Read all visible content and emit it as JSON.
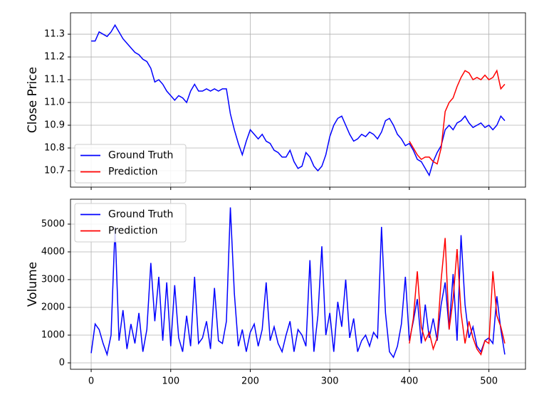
{
  "chart_data": [
    {
      "type": "line",
      "y_label": "Close Price",
      "legend": "lower left",
      "grid": true,
      "xlim": [
        -26,
        546
      ],
      "xticks": [
        0,
        100,
        200,
        300,
        400,
        500
      ],
      "ylim": [
        10.628,
        11.394
      ],
      "yticks": [
        10.7,
        10.8,
        10.9,
        {
          "value": 11,
          "label": "11.0"
        },
        11.1,
        11.2,
        11.3
      ],
      "series": [
        {
          "name": "Ground Truth",
          "color": "#0000ff",
          "x": [
            0,
            5,
            10,
            15,
            20,
            25,
            30,
            35,
            40,
            45,
            50,
            55,
            60,
            65,
            70,
            75,
            80,
            85,
            90,
            95,
            100,
            105,
            110,
            115,
            120,
            125,
            130,
            135,
            140,
            145,
            150,
            155,
            160,
            165,
            170,
            175,
            180,
            185,
            190,
            195,
            200,
            205,
            210,
            215,
            220,
            225,
            230,
            235,
            240,
            245,
            250,
            255,
            260,
            265,
            270,
            275,
            280,
            285,
            290,
            295,
            300,
            305,
            310,
            315,
            320,
            325,
            330,
            335,
            340,
            345,
            350,
            355,
            360,
            365,
            370,
            375,
            380,
            385,
            390,
            395,
            400,
            405,
            410,
            415,
            420,
            425,
            430,
            435,
            440,
            445,
            450,
            455,
            460,
            465,
            470,
            475,
            480,
            485,
            490,
            495,
            500,
            505,
            510,
            515,
            520
          ],
          "values": [
            11.27,
            11.27,
            11.31,
            11.3,
            11.29,
            11.31,
            11.34,
            11.31,
            11.28,
            11.26,
            11.24,
            11.22,
            11.21,
            11.19,
            11.18,
            11.15,
            11.09,
            11.1,
            11.08,
            11.05,
            11.03,
            11.01,
            11.03,
            11.02,
            11.0,
            11.05,
            11.08,
            11.05,
            11.05,
            11.06,
            11.05,
            11.06,
            11.05,
            11.06,
            11.06,
            10.95,
            10.88,
            10.82,
            10.77,
            10.83,
            10.88,
            10.86,
            10.84,
            10.86,
            10.83,
            10.82,
            10.79,
            10.78,
            10.76,
            10.76,
            10.79,
            10.74,
            10.71,
            10.72,
            10.78,
            10.76,
            10.72,
            10.7,
            10.72,
            10.77,
            10.85,
            10.9,
            10.93,
            10.94,
            10.9,
            10.86,
            10.83,
            10.84,
            10.86,
            10.85,
            10.87,
            10.86,
            10.84,
            10.87,
            10.92,
            10.93,
            10.9,
            10.86,
            10.84,
            10.81,
            10.82,
            10.79,
            10.75,
            10.74,
            10.71,
            10.68,
            10.74,
            10.78,
            10.81,
            10.88,
            10.9,
            10.88,
            10.91,
            10.92,
            10.94,
            10.91,
            10.89,
            10.9,
            10.91,
            10.89,
            10.9,
            10.88,
            10.9,
            10.94,
            10.92
          ]
        },
        {
          "name": "Prediction",
          "color": "#ff0000",
          "x": [
            400,
            405,
            410,
            415,
            420,
            425,
            430,
            435,
            440,
            445,
            450,
            455,
            460,
            465,
            470,
            475,
            480,
            485,
            490,
            495,
            500,
            505,
            510,
            515,
            520
          ],
          "values": [
            10.83,
            10.8,
            10.77,
            10.75,
            10.76,
            10.76,
            10.74,
            10.73,
            10.8,
            10.96,
            11.0,
            11.02,
            11.07,
            11.11,
            11.14,
            11.13,
            11.1,
            11.11,
            11.1,
            11.12,
            11.1,
            11.11,
            11.14,
            11.06,
            11.08
          ]
        }
      ]
    },
    {
      "type": "line",
      "y_label": "Volume",
      "legend": "upper left",
      "grid": true,
      "xlim": [
        -26,
        546
      ],
      "xticks": [
        0,
        100,
        200,
        300,
        400,
        500
      ],
      "ylim": [
        -231,
        5897
      ],
      "yticks": [
        0,
        1000,
        2000,
        3000,
        4000,
        5000
      ],
      "series": [
        {
          "name": "Ground Truth",
          "color": "#0000ff",
          "x": [
            0,
            5,
            10,
            15,
            20,
            25,
            30,
            35,
            40,
            45,
            50,
            55,
            60,
            65,
            70,
            75,
            80,
            85,
            90,
            95,
            100,
            105,
            110,
            115,
            120,
            125,
            130,
            135,
            140,
            145,
            150,
            155,
            160,
            165,
            170,
            175,
            180,
            185,
            190,
            195,
            200,
            205,
            210,
            215,
            220,
            225,
            230,
            235,
            240,
            245,
            250,
            255,
            260,
            265,
            270,
            275,
            280,
            285,
            290,
            295,
            300,
            305,
            310,
            315,
            320,
            325,
            330,
            335,
            340,
            345,
            350,
            355,
            360,
            365,
            370,
            375,
            380,
            385,
            390,
            395,
            400,
            405,
            410,
            415,
            420,
            425,
            430,
            435,
            440,
            445,
            450,
            455,
            460,
            465,
            470,
            475,
            480,
            485,
            490,
            495,
            500,
            505,
            510,
            515,
            520
          ],
          "values": [
            350,
            1400,
            1200,
            700,
            300,
            1000,
            4900,
            800,
            1900,
            500,
            1400,
            700,
            1800,
            400,
            1200,
            3600,
            1500,
            3100,
            800,
            2900,
            600,
            2800,
            900,
            400,
            1700,
            600,
            3100,
            700,
            900,
            1500,
            500,
            2700,
            800,
            700,
            1500,
            5600,
            2500,
            600,
            1200,
            400,
            1100,
            1400,
            600,
            1200,
            2900,
            800,
            1300,
            700,
            400,
            1000,
            1500,
            400,
            1200,
            1000,
            600,
            3700,
            400,
            1700,
            4200,
            1000,
            1800,
            400,
            2200,
            1300,
            3000,
            900,
            1600,
            400,
            800,
            1000,
            600,
            1100,
            900,
            4900,
            1800,
            400,
            200,
            600,
            1400,
            3100,
            800,
            1500,
            2300,
            700,
            2100,
            900,
            1600,
            800,
            2100,
            2900,
            1200,
            3200,
            800,
            4600,
            2100,
            900,
            1300,
            600,
            400,
            800,
            900,
            700,
            2400,
            1200,
            300
          ]
        },
        {
          "name": "Prediction",
          "color": "#ff0000",
          "x": [
            400,
            405,
            410,
            415,
            420,
            425,
            430,
            435,
            440,
            445,
            450,
            455,
            460,
            465,
            470,
            475,
            480,
            485,
            490,
            495,
            500,
            505,
            510,
            515,
            520
          ],
          "values": [
            700,
            1600,
            3300,
            1300,
            800,
            1100,
            500,
            900,
            3000,
            4500,
            1200,
            2300,
            4100,
            1800,
            700,
            1500,
            900,
            500,
            300,
            800,
            700,
            3300,
            1700,
            1300,
            700
          ]
        }
      ]
    }
  ]
}
